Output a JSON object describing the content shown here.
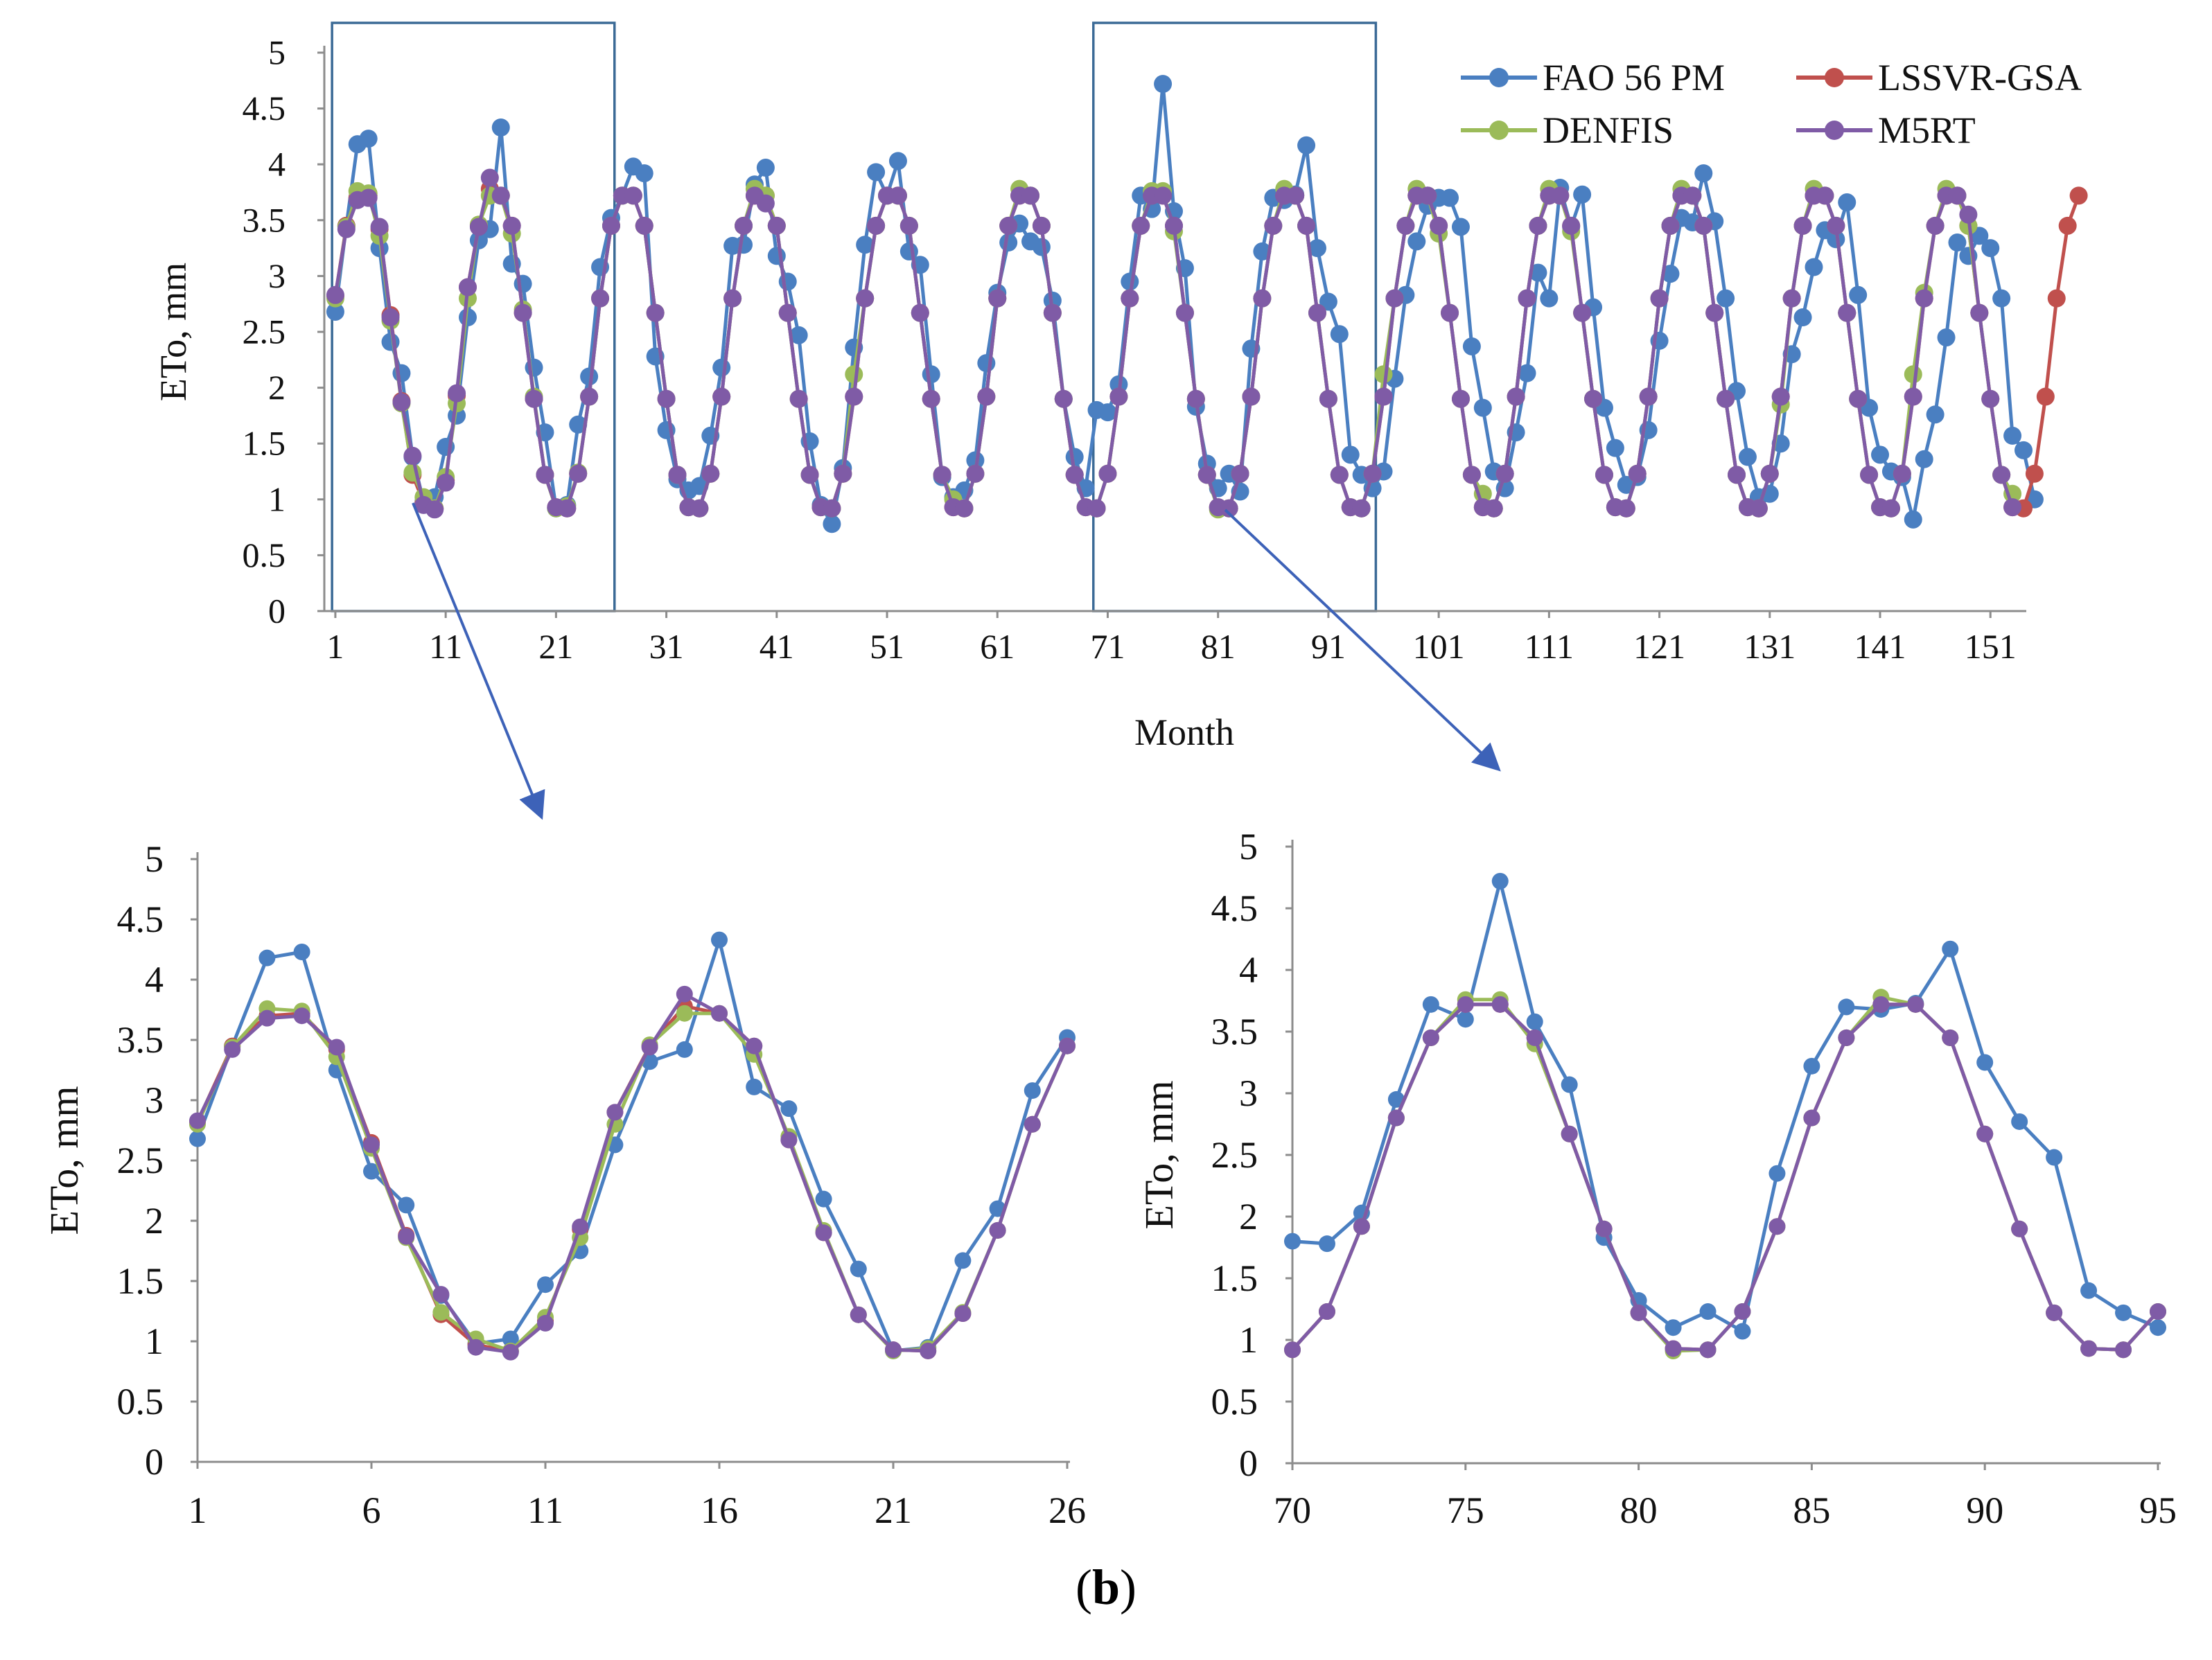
{
  "caption": {
    "open": "(",
    "label": "b",
    "close": ")"
  },
  "chart_data": [
    {
      "id": "main",
      "type": "line",
      "xlabel": "Month",
      "ylabel": "ETo, mm",
      "xlim": [
        0,
        154
      ],
      "ylim": [
        0,
        5
      ],
      "xticks": [
        "1",
        "11",
        "21",
        "31",
        "41",
        "51",
        "61",
        "71",
        "81",
        "91",
        "101",
        "111",
        "121",
        "131",
        "141",
        "151"
      ],
      "yticks": [
        "0",
        "0.5",
        "1",
        "1.5",
        "2",
        "2.5",
        "3",
        "3.5",
        "4",
        "4.5",
        "5"
      ],
      "legend": [
        "FAO 56 PM",
        "LSSVR-GSA",
        "DENFIS",
        "M5RT"
      ],
      "colors": {
        "FAO 56 PM": "#4a7fc1",
        "LSSVR-GSA": "#c0504d",
        "DENFIS": "#9bbb59",
        "M5RT": "#7f5ba6"
      },
      "highlight_ranges": [
        [
          1,
          26
        ],
        [
          70,
          95
        ]
      ],
      "series": [
        {
          "name": "FAO 56 PM",
          "values": [
            2.68,
            3.45,
            4.18,
            4.23,
            3.25,
            2.41,
            2.13,
            1.38,
            0.98,
            1.02,
            1.47,
            1.75,
            2.63,
            3.32,
            3.42,
            4.33,
            3.11,
            2.93,
            2.18,
            1.6,
            0.92,
            0.95,
            1.67,
            2.1,
            3.08,
            3.52,
            3.72,
            3.98,
            3.92,
            2.28,
            1.62,
            1.18,
            1.08,
            1.12,
            1.57,
            2.18,
            3.27,
            3.28,
            3.82,
            3.97,
            3.18,
            2.95,
            2.47,
            1.52,
            0.95,
            0.78,
            1.28,
            2.36,
            3.28,
            3.93,
            3.72,
            4.03,
            3.22,
            3.1,
            2.12,
            1.2,
            1.02,
            1.08,
            1.35,
            2.22,
            2.85,
            3.3,
            3.47,
            3.31,
            3.26,
            2.78,
            1.9,
            1.38,
            1.1,
            1.8,
            1.78,
            2.03,
            2.95,
            3.72,
            3.6,
            4.72,
            3.58,
            3.07,
            1.83,
            1.32,
            1.1,
            1.23,
            1.07,
            2.35,
            3.22,
            3.7,
            3.68,
            3.73,
            4.17,
            3.25,
            2.77,
            2.48,
            1.4,
            1.22,
            1.1,
            1.25,
            2.08,
            2.83,
            3.31,
            3.63,
            3.7,
            3.7,
            3.44,
            2.37,
            1.82,
            1.25,
            1.1,
            1.6,
            2.13,
            3.03,
            2.8,
            3.79,
            3.44,
            3.73,
            2.72,
            1.82,
            1.46,
            1.13,
            1.2,
            1.62,
            2.42,
            3.02,
            3.52,
            3.48,
            3.92,
            3.49,
            2.8,
            1.97,
            1.38,
            1.02,
            1.05,
            1.5,
            2.3,
            2.63,
            3.08,
            3.41,
            3.33,
            3.66,
            2.83,
            1.82,
            1.4,
            1.25,
            1.2,
            0.82,
            1.36,
            1.76,
            2.45,
            3.3,
            3.18,
            3.36,
            3.25,
            2.8,
            1.57,
            1.44,
            1.0
          ]
        },
        {
          "name": "LSSVR-GSA",
          "values": [
            2.82,
            3.45,
            3.7,
            3.72,
            3.42,
            2.65,
            1.88,
            1.22,
            0.97,
            0.92,
            1.17,
            1.93,
            2.9,
            3.45,
            3.78,
            3.72,
            3.45,
            2.67,
            1.9,
            1.22,
            0.93,
            0.92,
            1.23,
            1.92,
            2.8,
            3.45,
            3.72,
            3.72,
            3.45,
            2.67,
            1.9,
            1.22,
            0.93,
            0.92,
            1.23,
            1.92,
            2.8,
            3.45,
            3.72,
            3.72,
            3.45,
            2.67,
            1.9,
            1.22,
            0.93,
            0.92,
            1.23,
            1.92,
            2.8,
            3.45,
            3.72,
            3.72,
            3.45,
            2.67,
            1.9,
            1.22,
            0.93,
            0.92,
            1.23,
            1.92,
            2.8,
            3.45,
            3.72,
            3.72,
            3.45,
            2.67,
            1.9,
            1.22,
            0.93,
            0.92,
            1.23,
            1.92,
            2.8,
            3.45,
            3.72,
            3.72,
            3.45,
            2.67,
            1.9,
            1.22,
            0.93,
            0.92,
            1.23,
            1.92,
            2.8,
            3.45,
            3.72,
            3.72,
            3.45,
            2.67,
            1.9,
            1.22,
            0.93,
            0.92,
            1.23,
            1.92,
            2.8,
            3.45,
            3.72,
            3.72,
            3.45,
            2.67,
            1.9,
            1.22,
            0.93,
            0.92,
            1.23,
            1.92,
            2.8,
            3.45,
            3.72,
            3.72,
            3.45,
            2.67,
            1.9,
            1.22,
            0.93,
            0.92,
            1.23,
            1.92,
            2.8,
            3.45,
            3.72,
            3.72,
            3.45,
            2.67,
            1.9,
            1.22,
            0.93,
            0.92,
            1.23,
            1.92,
            2.8,
            3.45,
            3.72,
            3.72,
            3.45,
            2.67,
            1.9,
            1.22,
            0.93,
            0.92,
            1.23,
            1.92,
            2.8,
            3.45,
            3.72,
            3.72,
            3.45,
            2.67,
            1.9,
            1.22,
            0.93,
            0.92,
            1.23,
            1.92,
            2.8,
            3.45,
            3.72
          ]
        },
        {
          "name": "DENFIS",
          "values": [
            2.8,
            3.44,
            3.76,
            3.74,
            3.36,
            2.6,
            1.86,
            1.24,
            1.02,
            0.92,
            1.2,
            1.86,
            2.8,
            3.46,
            3.72,
            3.72,
            3.38,
            2.7,
            1.92,
            1.22,
            0.92,
            0.94,
            1.24,
            1.92,
            2.8,
            3.45,
            3.72,
            3.72,
            3.45,
            2.67,
            1.9,
            1.22,
            0.93,
            0.92,
            1.23,
            1.92,
            2.8,
            3.45,
            3.78,
            3.72,
            3.45,
            2.67,
            1.9,
            1.22,
            0.93,
            0.92,
            1.23,
            2.12,
            2.8,
            3.45,
            3.72,
            3.72,
            3.45,
            2.67,
            1.9,
            1.22,
            1.0,
            0.92,
            1.23,
            1.92,
            2.8,
            3.45,
            3.78,
            3.72,
            3.45,
            2.67,
            1.9,
            1.22,
            0.93,
            0.92,
            1.23,
            1.92,
            2.8,
            3.45,
            3.76,
            3.76,
            3.4,
            2.67,
            1.9,
            1.22,
            0.91,
            0.92,
            1.23,
            1.92,
            2.8,
            3.45,
            3.78,
            3.72,
            3.45,
            2.67,
            1.9,
            1.22,
            0.93,
            0.92,
            1.23,
            2.12,
            2.8,
            3.45,
            3.78,
            3.72,
            3.38,
            2.67,
            1.9,
            1.22,
            1.05,
            0.92,
            1.23,
            1.92,
            2.8,
            3.45,
            3.78,
            3.72,
            3.4,
            2.67,
            1.9,
            1.22,
            0.93,
            0.92,
            1.23,
            1.92,
            2.8,
            3.45,
            3.78,
            3.72,
            3.45,
            2.67,
            1.9,
            1.22,
            0.93,
            0.92,
            1.23,
            1.85,
            2.8,
            3.45,
            3.78,
            3.72,
            3.45,
            2.67,
            1.9,
            1.22,
            0.93,
            0.92,
            1.23,
            2.12,
            2.85,
            3.45,
            3.78,
            3.72,
            3.45,
            2.67,
            1.9,
            1.22,
            1.05
          ]
        },
        {
          "name": "M5RT",
          "values": [
            2.83,
            3.42,
            3.68,
            3.7,
            3.44,
            2.63,
            1.87,
            1.39,
            0.95,
            0.91,
            1.15,
            1.95,
            2.9,
            3.44,
            3.88,
            3.72,
            3.45,
            2.67,
            1.9,
            1.22,
            0.93,
            0.92,
            1.23,
            1.92,
            2.8,
            3.45,
            3.72,
            3.72,
            3.45,
            2.67,
            1.9,
            1.22,
            0.93,
            0.92,
            1.23,
            1.92,
            2.8,
            3.45,
            3.72,
            3.65,
            3.45,
            2.67,
            1.9,
            1.22,
            0.93,
            0.92,
            1.23,
            1.92,
            2.8,
            3.45,
            3.72,
            3.72,
            3.45,
            2.67,
            1.9,
            1.22,
            0.93,
            0.92,
            1.23,
            1.92,
            2.8,
            3.45,
            3.72,
            3.72,
            3.45,
            2.67,
            1.9,
            1.22,
            0.93,
            0.92,
            1.23,
            1.92,
            2.8,
            3.45,
            3.72,
            3.72,
            3.45,
            2.67,
            1.9,
            1.22,
            0.93,
            0.92,
            1.23,
            1.92,
            2.8,
            3.45,
            3.72,
            3.72,
            3.45,
            2.67,
            1.9,
            1.22,
            0.93,
            0.92,
            1.23,
            1.92,
            2.8,
            3.45,
            3.72,
            3.72,
            3.45,
            2.67,
            1.9,
            1.22,
            0.93,
            0.92,
            1.23,
            1.92,
            2.8,
            3.45,
            3.72,
            3.72,
            3.45,
            2.67,
            1.9,
            1.22,
            0.93,
            0.92,
            1.23,
            1.92,
            2.8,
            3.45,
            3.72,
            3.72,
            3.45,
            2.67,
            1.9,
            1.22,
            0.93,
            0.92,
            1.23,
            1.92,
            2.8,
            3.45,
            3.72,
            3.72,
            3.45,
            2.67,
            1.9,
            1.22,
            0.93,
            0.92,
            1.23,
            1.92,
            2.8,
            3.45,
            3.72,
            3.72,
            3.55,
            2.67,
            1.9,
            1.22,
            0.93
          ]
        }
      ]
    },
    {
      "id": "zoom-1",
      "type": "line",
      "xlabel": "",
      "ylabel": "ETo, mm",
      "xlim": [
        1,
        26
      ],
      "ylim": [
        0,
        5
      ],
      "xticks": [
        "1",
        "6",
        "11",
        "16",
        "21",
        "26"
      ],
      "yticks": [
        "0",
        "0.5",
        "1",
        "1.5",
        "2",
        "2.5",
        "3",
        "3.5",
        "4",
        "4.5",
        "5"
      ],
      "x_start": 1,
      "series": [
        {
          "name": "FAO 56 PM",
          "values": [
            2.68,
            3.45,
            4.18,
            4.23,
            3.25,
            2.41,
            2.13,
            1.38,
            0.98,
            1.02,
            1.47,
            1.75,
            2.63,
            3.32,
            3.42,
            4.33,
            3.11,
            2.93,
            2.18,
            1.6,
            0.92,
            0.95,
            1.67,
            2.1,
            3.08,
            3.52
          ]
        },
        {
          "name": "LSSVR-GSA",
          "values": [
            2.82,
            3.45,
            3.7,
            3.72,
            3.42,
            2.65,
            1.88,
            1.22,
            0.97,
            0.92,
            1.17,
            1.93,
            2.9,
            3.45,
            3.78,
            3.72,
            3.45,
            2.67,
            1.9,
            1.22,
            0.93,
            0.92,
            1.23,
            1.92,
            2.8,
            3.45
          ]
        },
        {
          "name": "DENFIS",
          "values": [
            2.8,
            3.44,
            3.76,
            3.74,
            3.36,
            2.6,
            1.86,
            1.24,
            1.02,
            0.92,
            1.2,
            1.86,
            2.8,
            3.46,
            3.72,
            3.72,
            3.38,
            2.7,
            1.92,
            1.22,
            0.92,
            0.94,
            1.24,
            1.92,
            2.8,
            3.45
          ]
        },
        {
          "name": "M5RT",
          "values": [
            2.83,
            3.42,
            3.68,
            3.7,
            3.44,
            2.63,
            1.87,
            1.39,
            0.95,
            0.91,
            1.15,
            1.95,
            2.9,
            3.44,
            3.88,
            3.72,
            3.45,
            2.67,
            1.9,
            1.22,
            0.93,
            0.92,
            1.23,
            1.92,
            2.8,
            3.45
          ]
        }
      ]
    },
    {
      "id": "zoom-2",
      "type": "line",
      "xlabel": "",
      "ylabel": "ETo, mm",
      "xlim": [
        70,
        95
      ],
      "ylim": [
        0,
        5
      ],
      "xticks": [
        "70",
        "75",
        "80",
        "85",
        "90",
        "95"
      ],
      "yticks": [
        "0",
        "0.5",
        "1",
        "1.5",
        "2",
        "2.5",
        "3",
        "3.5",
        "4",
        "4.5",
        "5"
      ],
      "x_start": 70,
      "series": [
        {
          "name": "FAO 56 PM",
          "values": [
            1.8,
            1.78,
            2.03,
            2.95,
            3.72,
            3.6,
            4.72,
            3.58,
            3.07,
            1.83,
            1.32,
            1.1,
            1.23,
            1.07,
            2.35,
            3.22,
            3.7,
            3.68,
            3.73,
            4.17,
            3.25,
            2.77,
            2.48,
            1.4,
            1.22,
            1.1
          ]
        },
        {
          "name": "LSSVR-GSA",
          "values": [
            0.92,
            1.23,
            1.92,
            2.8,
            3.45,
            3.72,
            3.72,
            3.45,
            2.67,
            1.9,
            1.22,
            0.93,
            0.92,
            1.23,
            1.92,
            2.8,
            3.45,
            3.72,
            3.72,
            3.45,
            2.67,
            1.9,
            1.22,
            0.93,
            0.92,
            1.23
          ]
        },
        {
          "name": "DENFIS",
          "values": [
            0.92,
            1.23,
            1.92,
            2.8,
            3.45,
            3.76,
            3.76,
            3.4,
            2.67,
            1.9,
            1.22,
            0.91,
            0.92,
            1.23,
            1.92,
            2.8,
            3.45,
            3.78,
            3.72,
            3.45,
            2.67,
            1.9,
            1.22,
            0.93,
            0.92,
            1.23
          ]
        },
        {
          "name": "M5RT",
          "values": [
            0.92,
            1.23,
            1.92,
            2.8,
            3.45,
            3.72,
            3.72,
            3.45,
            2.67,
            1.9,
            1.22,
            0.93,
            0.92,
            1.23,
            1.92,
            2.8,
            3.45,
            3.72,
            3.72,
            3.45,
            2.67,
            1.9,
            1.22,
            0.93,
            0.92,
            1.23
          ]
        }
      ]
    }
  ]
}
